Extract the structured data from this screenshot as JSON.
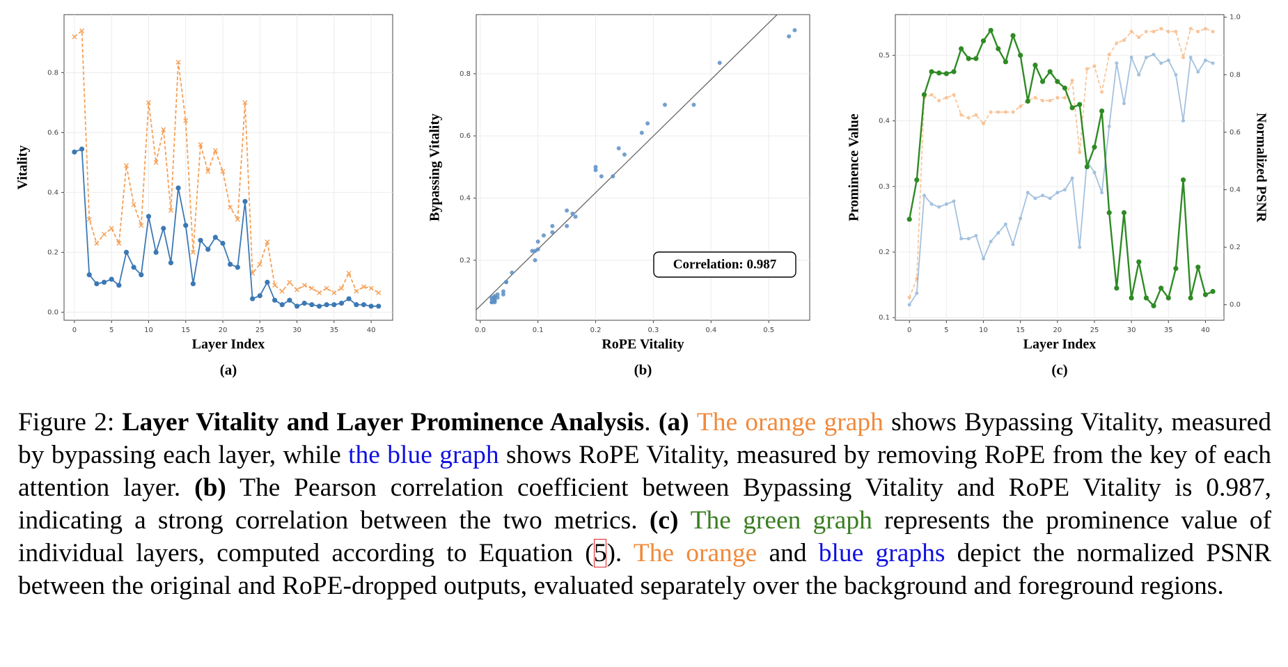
{
  "chart_data": [
    {
      "type": "line",
      "label": "(a)",
      "xlabel": "Layer Index",
      "ylabel": "Vitality",
      "x": [
        0,
        1,
        2,
        3,
        4,
        5,
        6,
        7,
        8,
        9,
        10,
        11,
        12,
        13,
        14,
        15,
        16,
        17,
        18,
        19,
        20,
        21,
        22,
        23,
        24,
        25,
        26,
        27,
        28,
        29,
        30,
        31,
        32,
        33,
        34,
        35,
        36,
        37,
        38,
        39,
        40,
        41
      ],
      "xlim": [
        -1.4,
        42.9
      ],
      "xticks": [
        0,
        5,
        10,
        15,
        20,
        25,
        30,
        35,
        40
      ],
      "ylim": [
        -0.027,
        0.994
      ],
      "yticks": [
        {
          "value": 0,
          "label": "0.0"
        },
        0.2,
        0.4,
        0.6,
        0.8
      ],
      "grid": true,
      "series": [
        {
          "color": "#f5a056",
          "line_style": "dashed",
          "marker": "x",
          "alpha": 1,
          "values": [
            0.92,
            0.94,
            0.31,
            0.23,
            0.26,
            0.28,
            0.23,
            0.49,
            0.36,
            0.29,
            0.7,
            0.5,
            0.61,
            0.34,
            0.835,
            0.64,
            0.2,
            0.56,
            0.47,
            0.54,
            0.47,
            0.35,
            0.31,
            0.7,
            0.13,
            0.16,
            0.235,
            0.09,
            0.07,
            0.1,
            0.075,
            0.09,
            0.08,
            0.065,
            0.08,
            0.065,
            0.08,
            0.13,
            0.07,
            0.085,
            0.08,
            0.065
          ]
        },
        {
          "color": "#3b78b4",
          "line_style": "solid",
          "marker": "circle",
          "alpha": 1,
          "values": [
            0.535,
            0.545,
            0.125,
            0.095,
            0.1,
            0.11,
            0.09,
            0.2,
            0.15,
            0.125,
            0.32,
            0.2,
            0.28,
            0.165,
            0.415,
            0.29,
            0.095,
            0.24,
            0.21,
            0.25,
            0.23,
            0.16,
            0.15,
            0.37,
            0.045,
            0.055,
            0.1,
            0.04,
            0.025,
            0.04,
            0.02,
            0.03,
            0.025,
            0.02,
            0.025,
            0.025,
            0.03,
            0.045,
            0.025,
            0.025,
            0.02,
            0.02
          ]
        }
      ]
    },
    {
      "type": "scatter",
      "label": "(b)",
      "xlabel": "RoPE Vitality",
      "ylabel": "Bypassing Vitality",
      "annotation": "Correlation: 0.987",
      "fit_line": true,
      "color": "#5b8fc6",
      "x": [
        0.535,
        0.545,
        0.125,
        0.095,
        0.1,
        0.11,
        0.09,
        0.2,
        0.15,
        0.125,
        0.32,
        0.2,
        0.28,
        0.165,
        0.415,
        0.29,
        0.095,
        0.24,
        0.21,
        0.25,
        0.23,
        0.16,
        0.15,
        0.37,
        0.045,
        0.055,
        0.1,
        0.04,
        0.025,
        0.04,
        0.02,
        0.03,
        0.025,
        0.02,
        0.025,
        0.025,
        0.03,
        0.045,
        0.025,
        0.025,
        0.02,
        0.02
      ],
      "values": [
        0.92,
        0.94,
        0.31,
        0.23,
        0.26,
        0.28,
        0.23,
        0.49,
        0.36,
        0.29,
        0.7,
        0.5,
        0.61,
        0.34,
        0.835,
        0.64,
        0.2,
        0.56,
        0.47,
        0.54,
        0.47,
        0.35,
        0.31,
        0.7,
        0.13,
        0.16,
        0.235,
        0.09,
        0.07,
        0.1,
        0.075,
        0.09,
        0.08,
        0.065,
        0.08,
        0.065,
        0.08,
        0.13,
        0.07,
        0.085,
        0.08,
        0.065
      ],
      "xlim": [
        -0.007,
        0.571
      ],
      "xticks": [
        {
          "value": 0,
          "label": "0.0"
        },
        0.1,
        0.2,
        0.3,
        0.4,
        0.5
      ],
      "ylim": [
        0.007,
        0.99
      ],
      "yticks": [
        0.2,
        0.4,
        0.6,
        0.8
      ],
      "grid": true
    },
    {
      "type": "line",
      "label": "(c)",
      "xlabel": "Layer Index",
      "ylabel": "Prominence Value",
      "y2label": "Normalized PSNR",
      "x": [
        0,
        1,
        2,
        3,
        4,
        5,
        6,
        7,
        8,
        9,
        10,
        11,
        12,
        13,
        14,
        15,
        16,
        17,
        18,
        19,
        20,
        21,
        22,
        23,
        24,
        25,
        26,
        27,
        28,
        29,
        30,
        31,
        32,
        33,
        34,
        35,
        36,
        37,
        38,
        39,
        40,
        41
      ],
      "xlim": [
        -1.9,
        42.5
      ],
      "xticks": [
        0,
        5,
        10,
        15,
        20,
        25,
        30,
        35,
        40
      ],
      "ylim": [
        0.096,
        0.562
      ],
      "yticks": [
        0.1,
        0.2,
        0.3,
        0.4,
        0.5
      ],
      "y2lim": [
        -0.054,
        1.009
      ],
      "y2ticks": [
        {
          "value": 0,
          "label": "0.0"
        },
        0.2,
        0.4,
        0.6,
        0.8,
        {
          "value": 1,
          "label": "1.0"
        }
      ],
      "grid": true,
      "series": [
        {
          "color": "#f5a056",
          "line_style": "dashed",
          "marker": "dot",
          "alpha": 0.6,
          "axis": "y2",
          "values": [
            0.025,
            0.09,
            0.72,
            0.73,
            0.71,
            0.72,
            0.73,
            0.66,
            0.65,
            0.66,
            0.63,
            0.67,
            0.67,
            0.67,
            0.67,
            0.69,
            0.71,
            0.72,
            0.71,
            0.71,
            0.72,
            0.72,
            0.78,
            0.53,
            0.82,
            0.83,
            0.74,
            0.87,
            0.91,
            0.92,
            0.95,
            0.93,
            0.95,
            0.95,
            0.96,
            0.95,
            0.95,
            0.86,
            0.96,
            0.95,
            0.96,
            0.95
          ]
        },
        {
          "color": "#5b8fc6",
          "line_style": "solid",
          "marker": "dot",
          "alpha": 0.55,
          "axis": "y2",
          "values": [
            0.0,
            0.04,
            0.38,
            0.35,
            0.34,
            0.35,
            0.36,
            0.23,
            0.23,
            0.24,
            0.16,
            0.22,
            0.25,
            0.28,
            0.21,
            0.3,
            0.39,
            0.37,
            0.38,
            0.37,
            0.39,
            0.4,
            0.44,
            0.2,
            0.5,
            0.46,
            0.39,
            0.62,
            0.84,
            0.7,
            0.86,
            0.8,
            0.86,
            0.87,
            0.84,
            0.85,
            0.8,
            0.64,
            0.86,
            0.81,
            0.85,
            0.84
          ]
        },
        {
          "color": "#2e8a24",
          "line_style": "solid",
          "marker": "circle",
          "alpha": 1,
          "values": [
            0.25,
            0.31,
            0.44,
            0.475,
            0.473,
            0.472,
            0.475,
            0.51,
            0.495,
            0.495,
            0.522,
            0.538,
            0.51,
            0.49,
            0.53,
            0.5,
            0.43,
            0.485,
            0.46,
            0.475,
            0.46,
            0.45,
            0.42,
            0.425,
            0.33,
            0.36,
            0.415,
            0.26,
            0.145,
            0.26,
            0.13,
            0.185,
            0.13,
            0.118,
            0.145,
            0.13,
            0.175,
            0.31,
            0.13,
            0.177,
            0.135,
            0.14
          ]
        }
      ]
    }
  ],
  "caption": {
    "segments": [
      {
        "text": "Figure 2: "
      },
      {
        "text": "Layer Vitality and Layer Prominence Analysis",
        "bold": true
      },
      {
        "text": ". "
      },
      {
        "text": "(a) ",
        "bold": true
      },
      {
        "text": "The orange graph",
        "color": "#f08a3c"
      },
      {
        "text": " shows Bypassing Vitality, measured by bypassing each layer, while "
      },
      {
        "text": "the blue graph",
        "color": "#1010e0"
      },
      {
        "text": " shows RoPE Vitality, measured by removing RoPE from the key of each attention layer. "
      },
      {
        "text": "(b)",
        "bold": true
      },
      {
        "text": " The Pearson correlation coefficient between Bypassing Vitality and RoPE Vitality is 0.987, indicating a strong correlation between the two metrics. "
      },
      {
        "text": "(c) ",
        "bold": true
      },
      {
        "text": "The green graph",
        "color": "#3a7d22"
      },
      {
        "text": " represents the prominence value of individual layers, computed according to Equation ("
      },
      {
        "text": "5",
        "boxed": true
      },
      {
        "text": "). "
      },
      {
        "text": "The orange",
        "color": "#f08a3c"
      },
      {
        "text": " and "
      },
      {
        "text": "blue graphs",
        "color": "#1010e0"
      },
      {
        "text": " depict the normalized PSNR between the original and RoPE-dropped outputs, evaluated separately over the background and foreground regions."
      }
    ]
  }
}
